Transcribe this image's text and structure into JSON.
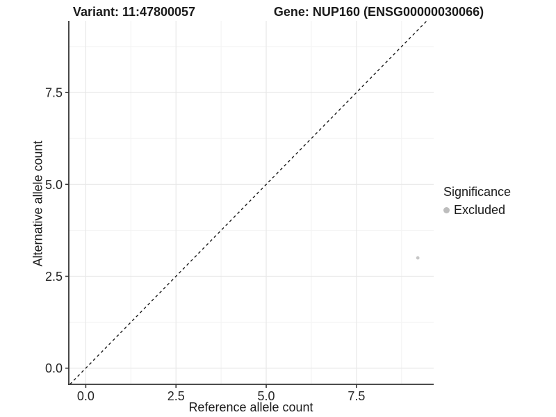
{
  "title_left": "Variant: 11:47800057",
  "title_right": "Gene: NUP160 (ENSG00000030066)",
  "axes": {
    "x_label": "Reference allele count",
    "y_label": "Alternative allele count"
  },
  "legend": {
    "title": "Significance",
    "items": [
      {
        "label": "Excluded",
        "color": "#bdbdbd"
      }
    ]
  },
  "chart_data": {
    "type": "scatter",
    "title": "Variant: 11:47800057 — Gene: NUP160 (ENSG00000030066)",
    "xlabel": "Reference allele count",
    "ylabel": "Alternative allele count",
    "xlim": [
      -0.47,
      9.64
    ],
    "ylim": [
      -0.44,
      9.45
    ],
    "xticks": {
      "values": [
        0,
        2.5,
        5,
        7.5
      ],
      "labels": [
        "0.0",
        "2.5",
        "5.0",
        "7.5"
      ]
    },
    "yticks": {
      "values": [
        0,
        2.5,
        5,
        7.5
      ],
      "labels": [
        "0.0",
        "2.5",
        "5.0",
        "7.5"
      ]
    },
    "minor_ticks": [
      1.25,
      3.75,
      6.25,
      8.75
    ],
    "grid": "major+minor",
    "legend_position": "right",
    "legend_title": "Significance",
    "reference_line": {
      "kind": "y=x",
      "style": "dashed",
      "color": "#1a1a1a"
    },
    "series": [
      {
        "name": "Excluded",
        "color": "#c6c6c6",
        "points": [
          {
            "x": 9.2,
            "y": 3.0
          }
        ]
      }
    ]
  },
  "style": {
    "grid_major_color": "#e8e8e8",
    "grid_minor_color": "#f4f4f4",
    "axis_color": "#333333",
    "tick_text_color": "#262626",
    "dash_color": "#1a1a1a",
    "background": "#ffffff"
  }
}
